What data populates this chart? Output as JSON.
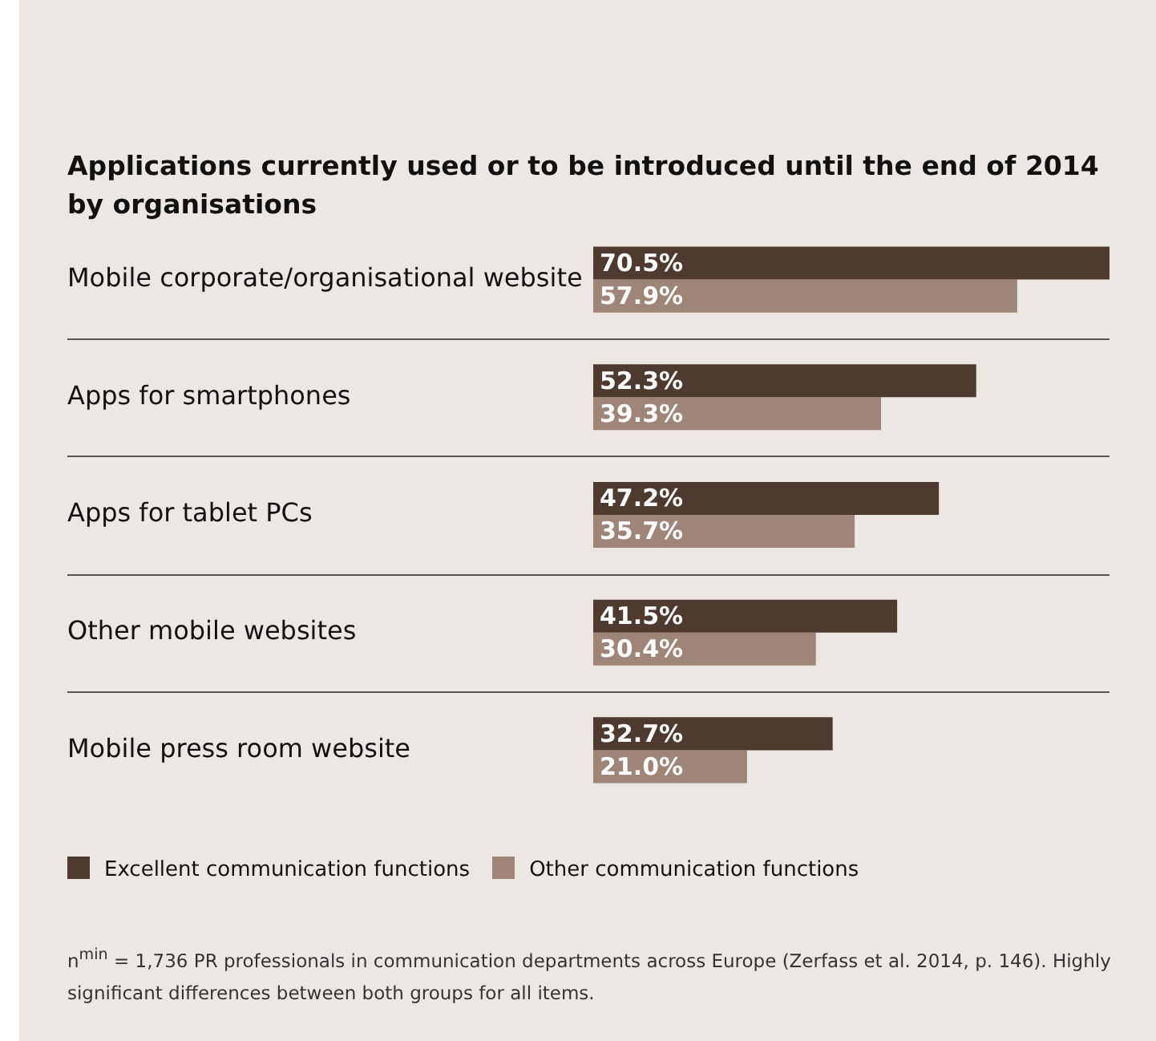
{
  "chart_data": {
    "type": "bar",
    "orientation": "horizontal",
    "title": "Applications currently used or to be introduced until the end of 2014 by organisations",
    "categories": [
      "Mobile corporate/organisational website",
      "Apps for smartphones",
      "Apps for tablet PCs",
      "Other mobile websites",
      "Mobile press room website"
    ],
    "series": [
      {
        "name": "Excellent communication functions",
        "color": "#4f3a2f",
        "values": [
          70.5,
          52.3,
          47.2,
          41.5,
          32.7
        ],
        "value_labels": [
          "70.5%",
          "52.3%",
          "47.2%",
          "41.5%",
          "32.7%"
        ]
      },
      {
        "name": "Other communication functions",
        "color": "#9e8577",
        "values": [
          57.9,
          39.3,
          35.7,
          30.4,
          21.0
        ],
        "value_labels": [
          "57.9%",
          "39.3%",
          "35.7%",
          "30.4%",
          "21.0%"
        ]
      }
    ],
    "legend": "bottom",
    "annotations": [
      "n$^{min}$ = 1,736 PR professionals in communication departments across Europe (Zerfass et al. 2014, p. 146). Highly significant differences between both groups for all items."
    ]
  }
}
